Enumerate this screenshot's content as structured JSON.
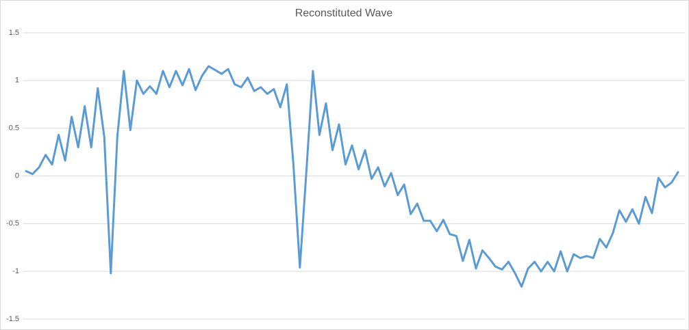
{
  "chart_data": {
    "type": "line",
    "title": "Reconstituted Wave",
    "series": [
      {
        "color": "#5b9bd5",
        "values": [
          0.05,
          0.02,
          0.09,
          0.22,
          0.12,
          0.43,
          0.16,
          0.62,
          0.3,
          0.73,
          0.3,
          0.92,
          0.41,
          -1.02,
          0.41,
          1.1,
          0.48,
          1.0,
          0.86,
          0.94,
          0.86,
          1.1,
          0.93,
          1.1,
          0.95,
          1.12,
          0.9,
          1.05,
          1.15,
          1.11,
          1.07,
          1.12,
          0.96,
          0.93,
          1.03,
          0.89,
          0.93,
          0.86,
          0.91,
          0.72,
          0.96,
          0.13,
          -0.96,
          0.05,
          1.1,
          0.43,
          0.76,
          0.27,
          0.54,
          0.12,
          0.32,
          0.07,
          0.27,
          -0.03,
          0.09,
          -0.11,
          0.03,
          -0.2,
          -0.09,
          -0.4,
          -0.29,
          -0.47,
          -0.47,
          -0.58,
          -0.46,
          -0.61,
          -0.63,
          -0.89,
          -0.67,
          -0.97,
          -0.78,
          -0.86,
          -0.95,
          -0.98,
          -0.9,
          -1.02,
          -1.16,
          -0.97,
          -0.9,
          -1.0,
          -0.9,
          -1.0,
          -0.79,
          -1.0,
          -0.82,
          -0.86,
          -0.84,
          -0.86,
          -0.66,
          -0.75,
          -0.6,
          -0.36,
          -0.48,
          -0.35,
          -0.5,
          -0.22,
          -0.39,
          -0.02,
          -0.12,
          -0.07,
          0.04
        ]
      }
    ],
    "ylim": [
      -1.5,
      1.5
    ],
    "yticks": [
      1.5,
      1,
      0.5,
      0,
      -0.5,
      -1,
      -1.5
    ],
    "grid": true
  }
}
